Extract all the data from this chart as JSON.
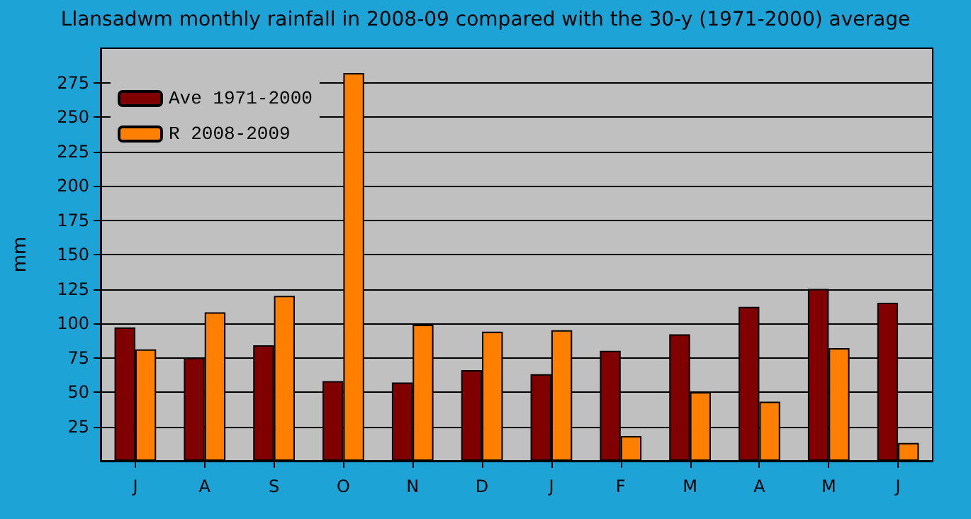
{
  "chart_data": {
    "type": "bar",
    "title": "Llansadwm monthly rainfall in 2008-09 compared with the 30-y (1971-2000) average",
    "ylabel": "mm",
    "categories": [
      "J",
      "A",
      "S",
      "O",
      "N",
      "D",
      "J",
      "F",
      "M",
      "A",
      "M",
      "J"
    ],
    "series": [
      {
        "name": "Ave 1971-2000",
        "color": "#800000",
        "values": [
          97,
          75,
          84,
          58,
          57,
          66,
          63,
          80,
          92,
          112,
          125,
          115
        ]
      },
      {
        "name": "R 2008-2009",
        "color": "#ff8000",
        "values": [
          81,
          108,
          120,
          282,
          99,
          94,
          95,
          18,
          50,
          43,
          82,
          13
        ]
      }
    ],
    "ylim": [
      0,
      300
    ],
    "yticks": [
      25,
      50,
      75,
      100,
      125,
      150,
      175,
      200,
      225,
      250,
      275
    ],
    "grid": "y",
    "legend": "top left"
  }
}
